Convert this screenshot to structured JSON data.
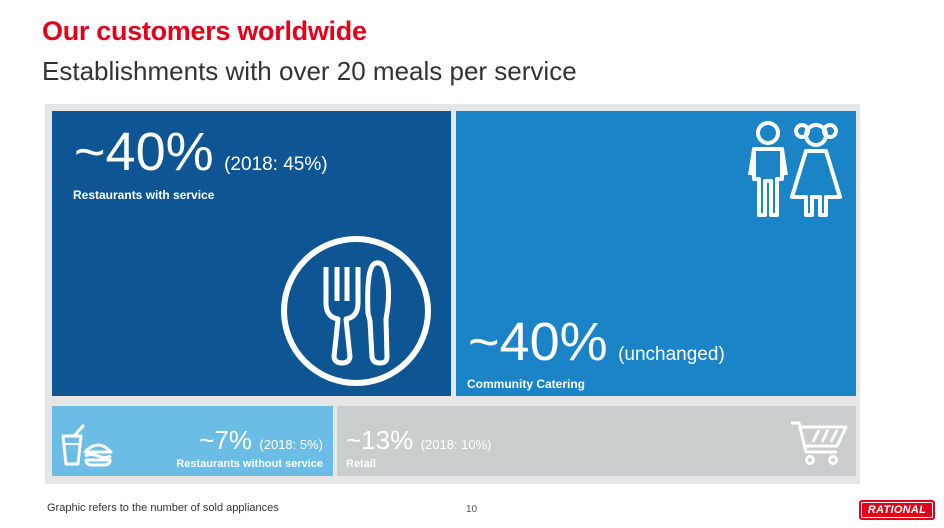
{
  "header": {
    "title": "Our customers worldwide",
    "subtitle": "Establishments with over 20 meals per service"
  },
  "segments": [
    {
      "id": "restaurants",
      "value": "~40%",
      "note": "(2018: 45%)",
      "label": "Restaurants with service",
      "icon": "cutlery-plate-icon",
      "color": "#0d5593"
    },
    {
      "id": "catering",
      "value": "~40%",
      "note": "(unchanged)",
      "label": "Community Catering",
      "icon": "children-icon",
      "color": "#1a84c7"
    },
    {
      "id": "no_service",
      "value": "~7%",
      "note": "(2018: 5%)",
      "label": "Restaurants without service",
      "icon": "fast-food-icon",
      "color": "#6cbde6"
    },
    {
      "id": "retail",
      "value": "~13%",
      "note": "(2018: 10%)",
      "label": "Retail",
      "icon": "shopping-cart-icon",
      "color": "#c9cdcd"
    }
  ],
  "footer": {
    "footnote": "Graphic refers to the number of sold appliances",
    "page_number": "10",
    "logo_text": "RATIONAL"
  },
  "colors": {
    "brand_red": "#e3001b"
  }
}
